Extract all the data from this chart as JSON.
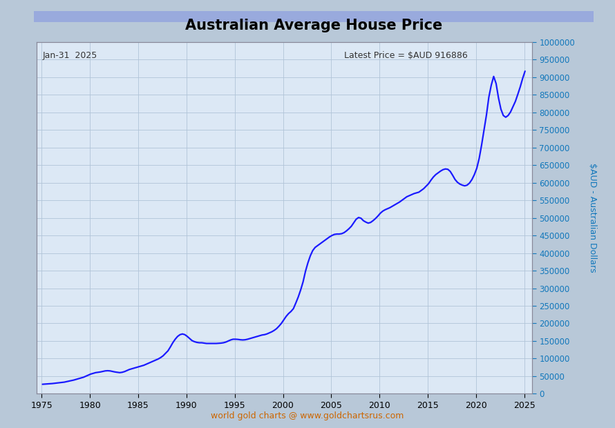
{
  "title": "Australian Average House Price",
  "date_label": "Jan-31  2025",
  "latest_price_label": "Latest Price = $AUD 916886",
  "ylabel_right": "$AUD - Australian Dollars",
  "footer": "world gold charts @ www.goldchartsrus.com",
  "line_color": "#1a1aff",
  "plot_bg_color": "#dce8f5",
  "grid_color": "#b0c4d8",
  "title_bg_top": "#8899dd",
  "title_bg_bottom": "#6677bb",
  "outer_bg_color": "#b8c8d8",
  "border_color": "#8899aa",
  "ylim": [
    0,
    1000000
  ],
  "xlim_start": 1974.5,
  "xlim_end": 2025.8,
  "yticks": [
    0,
    50000,
    100000,
    150000,
    200000,
    250000,
    300000,
    350000,
    400000,
    450000,
    500000,
    550000,
    600000,
    650000,
    700000,
    750000,
    800000,
    850000,
    900000,
    950000,
    1000000
  ],
  "xticks": [
    1975,
    1980,
    1985,
    1990,
    1995,
    2000,
    2005,
    2010,
    2015,
    2020,
    2025
  ],
  "years": [
    1975.08,
    1975.33,
    1975.58,
    1975.83,
    1976.08,
    1976.33,
    1976.58,
    1976.83,
    1977.08,
    1977.33,
    1977.58,
    1977.83,
    1978.08,
    1978.33,
    1978.58,
    1978.83,
    1979.08,
    1979.33,
    1979.58,
    1979.83,
    1980.08,
    1980.33,
    1980.58,
    1980.83,
    1981.08,
    1981.33,
    1981.58,
    1981.83,
    1982.08,
    1982.33,
    1982.58,
    1982.83,
    1983.08,
    1983.33,
    1983.58,
    1983.83,
    1984.08,
    1984.33,
    1984.58,
    1984.83,
    1985.08,
    1985.33,
    1985.58,
    1985.83,
    1986.08,
    1986.33,
    1986.58,
    1986.83,
    1987.08,
    1987.33,
    1987.58,
    1987.83,
    1988.08,
    1988.33,
    1988.58,
    1988.83,
    1989.08,
    1989.33,
    1989.58,
    1989.83,
    1990.08,
    1990.33,
    1990.58,
    1990.83,
    1991.08,
    1991.33,
    1991.58,
    1991.83,
    1992.08,
    1992.33,
    1992.58,
    1992.83,
    1993.08,
    1993.33,
    1993.58,
    1993.83,
    1994.08,
    1994.33,
    1994.58,
    1994.83,
    1995.08,
    1995.33,
    1995.58,
    1995.83,
    1996.08,
    1996.33,
    1996.58,
    1996.83,
    1997.08,
    1997.33,
    1997.58,
    1997.83,
    1998.08,
    1998.33,
    1998.58,
    1998.83,
    1999.08,
    1999.33,
    1999.58,
    1999.83,
    2000.08,
    2000.33,
    2000.58,
    2000.83,
    2001.08,
    2001.33,
    2001.58,
    2001.83,
    2002.08,
    2002.33,
    2002.58,
    2002.83,
    2003.08,
    2003.33,
    2003.58,
    2003.83,
    2004.08,
    2004.33,
    2004.58,
    2004.83,
    2005.08,
    2005.33,
    2005.58,
    2005.83,
    2006.08,
    2006.33,
    2006.58,
    2006.83,
    2007.08,
    2007.33,
    2007.58,
    2007.83,
    2008.08,
    2008.33,
    2008.58,
    2008.83,
    2009.08,
    2009.33,
    2009.58,
    2009.83,
    2010.08,
    2010.33,
    2010.58,
    2010.83,
    2011.08,
    2011.33,
    2011.58,
    2011.83,
    2012.08,
    2012.33,
    2012.58,
    2012.83,
    2013.08,
    2013.33,
    2013.58,
    2013.83,
    2014.08,
    2014.33,
    2014.58,
    2014.83,
    2015.08,
    2015.33,
    2015.58,
    2015.83,
    2016.08,
    2016.33,
    2016.58,
    2016.83,
    2017.08,
    2017.33,
    2017.58,
    2017.83,
    2018.08,
    2018.33,
    2018.58,
    2018.83,
    2019.08,
    2019.33,
    2019.58,
    2019.83,
    2020.08,
    2020.33,
    2020.58,
    2020.83,
    2021.08,
    2021.33,
    2021.58,
    2021.83,
    2022.08,
    2022.33,
    2022.58,
    2022.83,
    2023.08,
    2023.33,
    2023.58,
    2023.83,
    2024.08,
    2024.33,
    2024.58,
    2024.83,
    2025.08
  ],
  "prices": [
    27000,
    27500,
    28000,
    28500,
    29000,
    29800,
    30500,
    31200,
    32000,
    33000,
    34500,
    36000,
    37500,
    39000,
    41000,
    43000,
    45000,
    47000,
    50000,
    53000,
    56000,
    58000,
    60000,
    61000,
    62000,
    63500,
    65000,
    65500,
    65000,
    63500,
    62000,
    61000,
    60000,
    61000,
    63000,
    66000,
    69000,
    71000,
    73000,
    75000,
    77000,
    79000,
    81000,
    84000,
    87000,
    90000,
    93000,
    96000,
    99000,
    103000,
    108000,
    115000,
    122000,
    133000,
    145000,
    155000,
    163000,
    168000,
    170000,
    168000,
    163000,
    157000,
    151000,
    148000,
    146000,
    145000,
    145000,
    144000,
    143000,
    143000,
    143000,
    143000,
    143000,
    143500,
    144000,
    145000,
    147000,
    150000,
    153000,
    155000,
    155000,
    154500,
    153500,
    153000,
    153500,
    155000,
    157000,
    159000,
    161000,
    163000,
    165000,
    167000,
    168000,
    170000,
    173000,
    176000,
    180000,
    185000,
    192000,
    200000,
    210000,
    220000,
    228000,
    234000,
    242000,
    258000,
    275000,
    295000,
    318000,
    348000,
    372000,
    392000,
    407000,
    416000,
    421000,
    426000,
    431000,
    436000,
    441000,
    446000,
    450000,
    453000,
    454000,
    454000,
    455000,
    458000,
    463000,
    469000,
    476000,
    486000,
    496000,
    501000,
    499000,
    492000,
    488000,
    485000,
    487000,
    492000,
    498000,
    505000,
    513000,
    519000,
    523000,
    526000,
    529000,
    533000,
    537000,
    541000,
    545000,
    550000,
    555000,
    560000,
    563000,
    566000,
    569000,
    571000,
    573000,
    578000,
    583000,
    590000,
    597000,
    607000,
    616000,
    623000,
    628000,
    633000,
    637000,
    639000,
    638000,
    632000,
    621000,
    609000,
    601000,
    596000,
    593000,
    591000,
    593000,
    599000,
    609000,
    623000,
    641000,
    669000,
    707000,
    750000,
    792000,
    843000,
    877000,
    902000,
    882000,
    841000,
    809000,
    791000,
    786000,
    791000,
    801000,
    816000,
    831000,
    851000,
    872000,
    896000,
    916886
  ]
}
